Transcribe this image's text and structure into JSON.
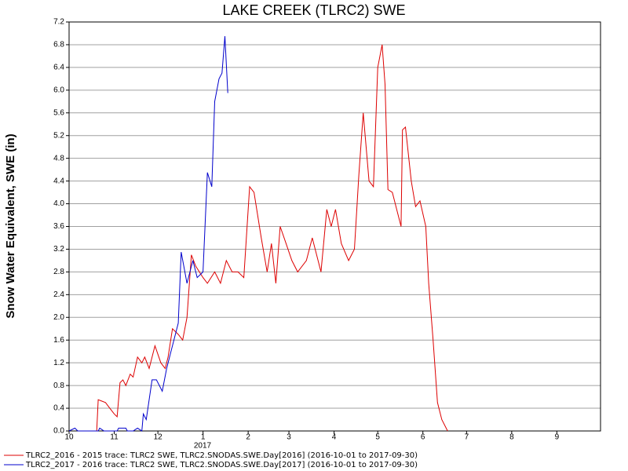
{
  "chart_data": {
    "type": "line",
    "title": "LAKE CREEK (TLRC2) SWE",
    "y_label": "Snow Water Equivalent, SWE (in)",
    "annotations": [
      "2017"
    ],
    "xlim": [
      0,
      365
    ],
    "xticks": [
      {
        "value": 0,
        "label": "10"
      },
      {
        "value": 31,
        "label": "11"
      },
      {
        "value": 61,
        "label": "12"
      },
      {
        "value": 92,
        "label": "1"
      },
      {
        "value": 123,
        "label": "2"
      },
      {
        "value": 151,
        "label": "3"
      },
      {
        "value": 182,
        "label": "4"
      },
      {
        "value": 212,
        "label": "5"
      },
      {
        "value": 243,
        "label": "6"
      },
      {
        "value": 273,
        "label": "7"
      },
      {
        "value": 304,
        "label": "8"
      },
      {
        "value": 335,
        "label": "9"
      }
    ],
    "ylim": [
      0,
      7.2
    ],
    "yticks": [
      {
        "value": 0,
        "label": "0.0"
      },
      0.4,
      0.8,
      1.2,
      1.6,
      {
        "value": 2,
        "label": "2.0"
      },
      2.4,
      2.8,
      3.2,
      3.6,
      {
        "value": 4,
        "label": "4.0"
      },
      4.4,
      4.8,
      5.2,
      5.6,
      {
        "value": 6,
        "label": "6.0"
      },
      6.4,
      6.8,
      7.2
    ],
    "grid": true,
    "legend": "bottom",
    "series": [
      {
        "name": "TLRC2_2016 - 2015 trace: TLRC2 SWE, TLRC2.SNODAS.SWE.Day[2016] (2016-10-01 to 2017-09-30)",
        "color": "#dd0000",
        "x": [
          19,
          20,
          25,
          28,
          31,
          33,
          35,
          37,
          39,
          42,
          44,
          47,
          50,
          52,
          55,
          59,
          63,
          66,
          68,
          71,
          75,
          78,
          81,
          84,
          87,
          92,
          95,
          100,
          104,
          108,
          112,
          116,
          120,
          124,
          127,
          132,
          136,
          139,
          142,
          145,
          149,
          153,
          157,
          163,
          167,
          173,
          177,
          180,
          183,
          187,
          192,
          196,
          199,
          202,
          206,
          209,
          212,
          215,
          217,
          219,
          222,
          226,
          228,
          229,
          231,
          235,
          238,
          241,
          245,
          247,
          250,
          253,
          256,
          260
        ],
        "values": [
          0,
          0.55,
          0.5,
          0.4,
          0.3,
          0.25,
          0.85,
          0.9,
          0.8,
          1.0,
          0.95,
          1.3,
          1.2,
          1.3,
          1.1,
          1.5,
          1.2,
          1.1,
          1.3,
          1.8,
          1.7,
          1.6,
          2.0,
          3.1,
          2.9,
          2.7,
          2.6,
          2.8,
          2.6,
          3.0,
          2.8,
          2.8,
          2.7,
          4.3,
          4.2,
          3.4,
          2.8,
          3.3,
          2.6,
          3.6,
          3.3,
          3.0,
          2.8,
          3.0,
          3.4,
          2.8,
          3.9,
          3.6,
          3.9,
          3.3,
          3.0,
          3.2,
          4.5,
          5.6,
          4.4,
          4.3,
          6.4,
          6.8,
          6.1,
          4.25,
          4.2,
          3.8,
          3.6,
          5.3,
          5.35,
          4.4,
          3.95,
          4.05,
          3.6,
          2.6,
          1.6,
          0.5,
          0.2,
          0
        ]
      },
      {
        "name": "TLRC2_2017 - 2016 trace: TLRC2 SWE, TLRC2.SNODAS.SWE.Day[2017] (2016-10-01 to 2017-09-30)",
        "color": "#0000cc",
        "x": [
          0,
          4,
          6,
          20,
          21,
          24,
          33,
          34,
          39,
          40,
          44,
          47,
          50,
          51,
          53,
          57,
          60,
          64,
          67,
          70,
          73,
          75,
          77,
          81,
          85,
          88,
          92,
          95,
          98,
          100,
          103,
          105,
          107,
          109
        ],
        "values": [
          0,
          0.05,
          0,
          0,
          0.05,
          0,
          0,
          0.05,
          0.05,
          0,
          0,
          0.05,
          0,
          0.3,
          0.2,
          0.9,
          0.9,
          0.7,
          1.1,
          1.4,
          1.7,
          1.9,
          3.15,
          2.6,
          3.0,
          2.7,
          2.8,
          4.55,
          4.3,
          5.8,
          6.2,
          6.3,
          6.95,
          5.95
        ]
      }
    ]
  }
}
